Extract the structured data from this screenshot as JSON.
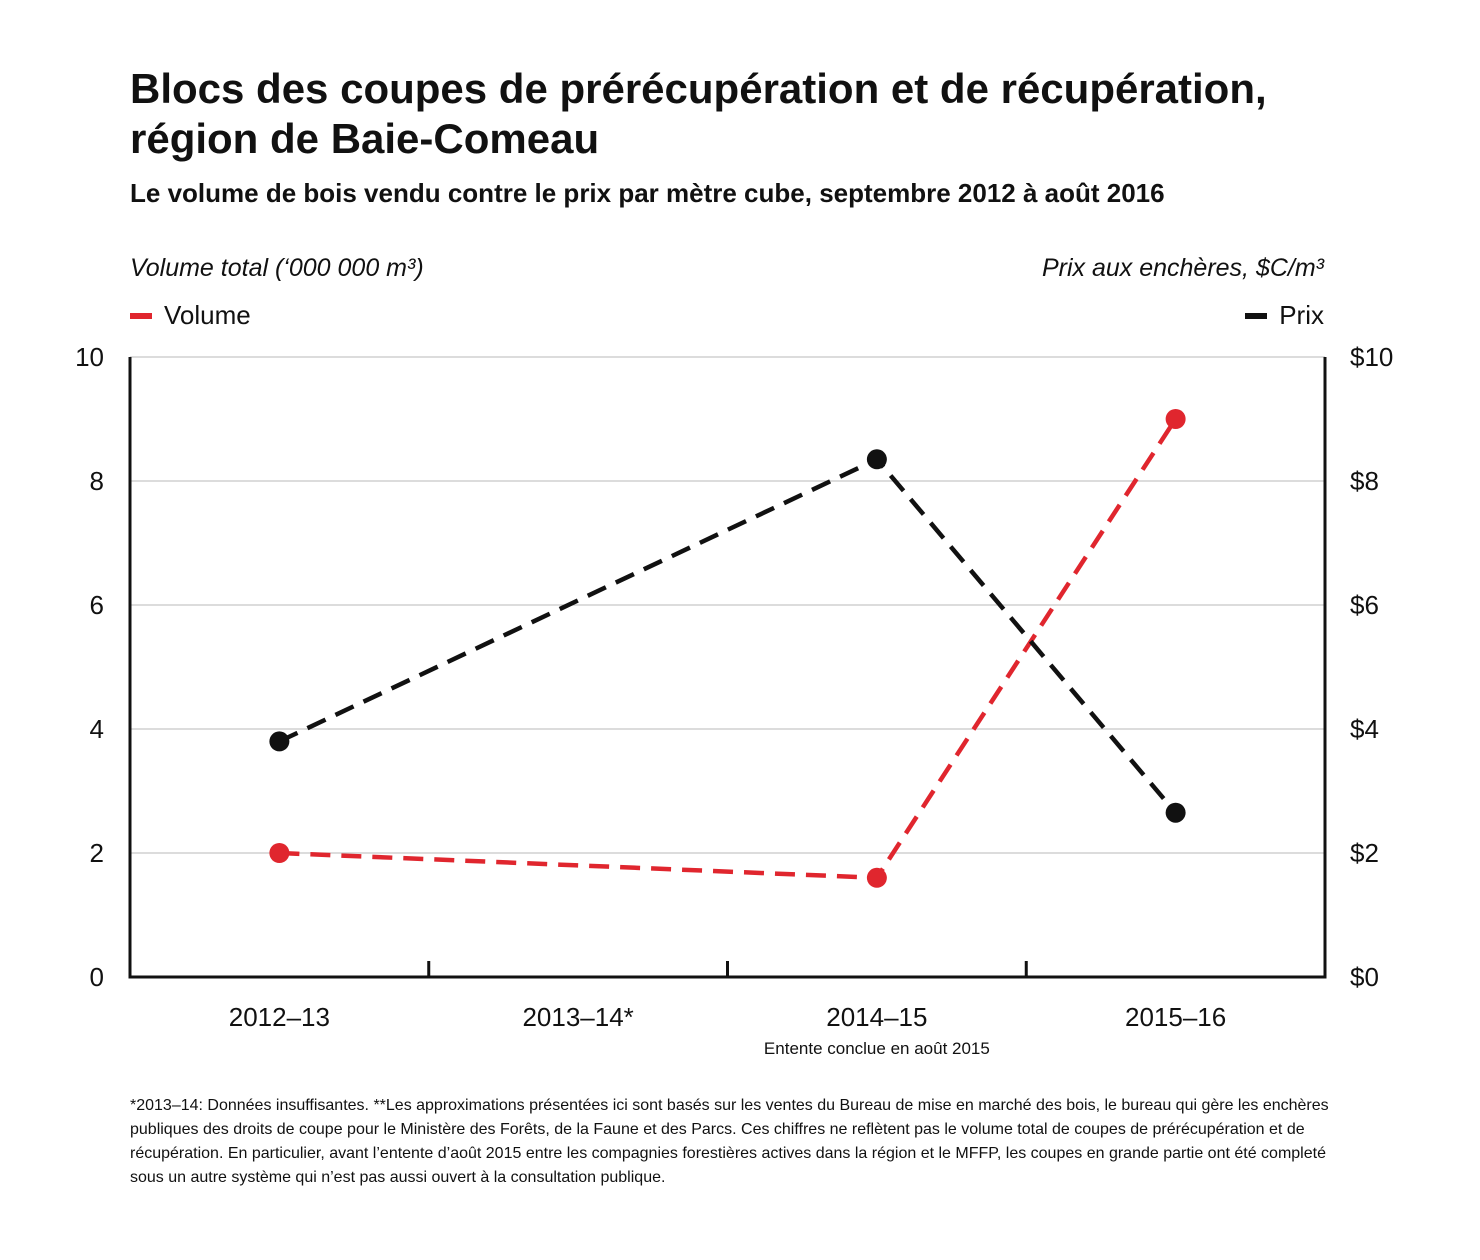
{
  "title": "Blocs des coupes de prérécupération et de récupération, région de Baie-Comeau",
  "subtitle": "Le volume de bois vendu contre le prix par mètre cube, septembre 2012 à août 2016",
  "footnote": "*2013–14: Données insuffisantes. **Les approximations présentées ici sont basés sur les ventes du Bureau de mise en marché des bois, le bureau qui gère les enchères publiques des droits de coupe pour le Ministère des Forêts, de la Faune et des Parcs. Ces chiffres ne reflètent pas le volume total de coupes de prérécupération et de récupération. En particulier, avant l’entente d’août 2015 entre les compagnies forestières actives dans la région et le MFFP, les coupes en grande partie ont été completé sous un autre système qui n’est pas aussi ouvert à la consultation publique.",
  "colors": {
    "volume": "#e0262e",
    "prix": "#111111",
    "grid": "#c8c8c8",
    "axis": "#111111"
  },
  "chart_data": {
    "type": "line",
    "title": "Blocs des coupes de prérécupération et de récupération, région de Baie-Comeau",
    "subtitle": "Le volume de bois vendu contre le prix par mètre cube, septembre 2012 à août 2016",
    "categories": [
      "2012–13",
      "2013–14*",
      "2014–15",
      "2015–16"
    ],
    "category_note": {
      "category": "2014–15",
      "text": "Entente conclue en août 2015"
    },
    "y_left": {
      "label": "Volume total (‘000 000 m³)",
      "ylim": [
        0,
        10
      ],
      "ticks": [
        "0",
        "2",
        "4",
        "6",
        "8",
        "10"
      ]
    },
    "y_right": {
      "label": "Prix aux enchères, $C/m³",
      "ylim": [
        0,
        10
      ],
      "ticks": [
        "$0",
        "$2",
        "$4",
        "$6",
        "$8",
        "$10"
      ]
    },
    "series": [
      {
        "name": "Volume",
        "axis": "left",
        "color": "#e0262e",
        "style": "dashed",
        "values": [
          2.0,
          null,
          1.6,
          9.0
        ]
      },
      {
        "name": "Prix",
        "axis": "right",
        "color": "#111111",
        "style": "dashed",
        "values": [
          3.8,
          null,
          8.35,
          2.65
        ]
      }
    ],
    "grid": true,
    "legend": {
      "left": "Volume",
      "right": "Prix",
      "placement": "top"
    }
  }
}
